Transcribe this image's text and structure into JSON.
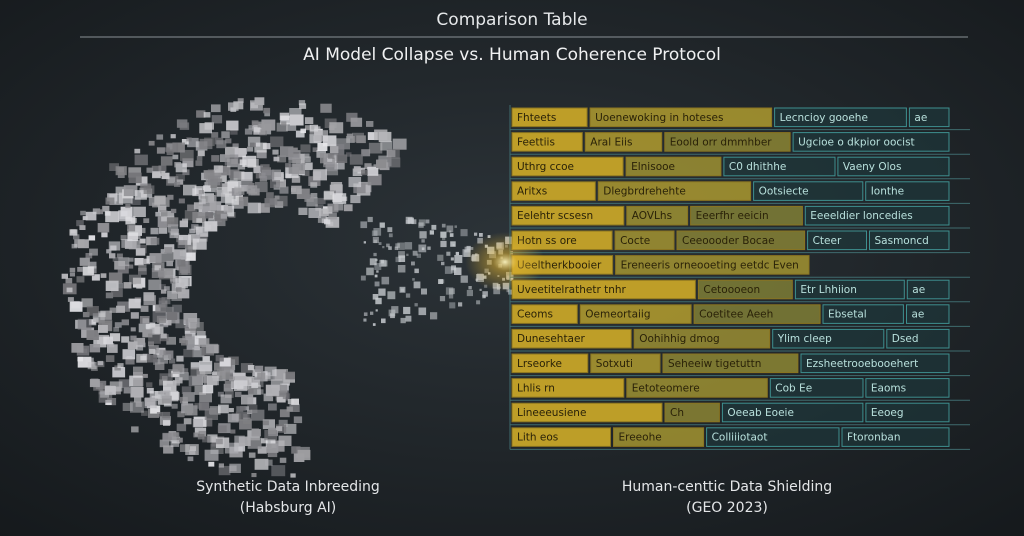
{
  "header": {
    "title": "Comparison Table",
    "subtitle": "AI Model Collapse vs. Human Coherence Protocol"
  },
  "left_caption": {
    "line1": "Synthetic Data Inbreeding",
    "line2": "(Habsburg AI)"
  },
  "right_caption": {
    "line1": "Human-centtic Data Shielding",
    "line2": "(GEO 2023)"
  },
  "table": {
    "rows": [
      [
        "Fhteets",
        "Uoenewoking in hoteses",
        "Lecncioy gooehe",
        "ae"
      ],
      [
        "Feettiis",
        "Aral Eiis",
        "Eoold orr dmmhber",
        "Ugcioe o dkpior oocist"
      ],
      [
        "Uthrg ccoe",
        "Elnisooe",
        "C0 dhithhe",
        "Vaeny Olos"
      ],
      [
        "Aritxs",
        "Dlegbrdrehehte",
        "Ootsiecte",
        "Ionthe"
      ],
      [
        "Eelehtr scsesn",
        "AOVLhs",
        "Eeerfhr eeicin",
        "Eeeeldier loncedies"
      ],
      [
        "Hotn ss ore",
        "Cocte",
        "Ceeoooder Bocae",
        "Cteer",
        "Sasmoncd"
      ],
      [
        "Ueeltherkbooier",
        "Ereneeris orneooeting eetdc Even"
      ],
      [
        "Uveetitelrathetr tnhr",
        "Cetoooeon",
        "Etr Lhhiion",
        "ae"
      ],
      [
        "Ceoms",
        "Oemeortaiig",
        "Coetitee Aeeh",
        "Ebsetal",
        "ae"
      ],
      [
        "Dunesehtaer",
        "Oohihhig dmog",
        "Ylim cleep",
        "Dsed"
      ],
      [
        "Lrseorke",
        "Sotxuti",
        "Seheeiw tigetuttn",
        "Ezsheetrooebooehert"
      ],
      [
        "Lhlis rn",
        "Eetoteomere",
        "Cob Ee",
        "Eaoms"
      ],
      [
        "Lineeeusiene",
        "Ch",
        "Oeeab Eoeie",
        "Eeoeg"
      ],
      [
        "Lith eos",
        "Ereeohe",
        "Colliiiotaot",
        "Ftoronban"
      ]
    ]
  }
}
